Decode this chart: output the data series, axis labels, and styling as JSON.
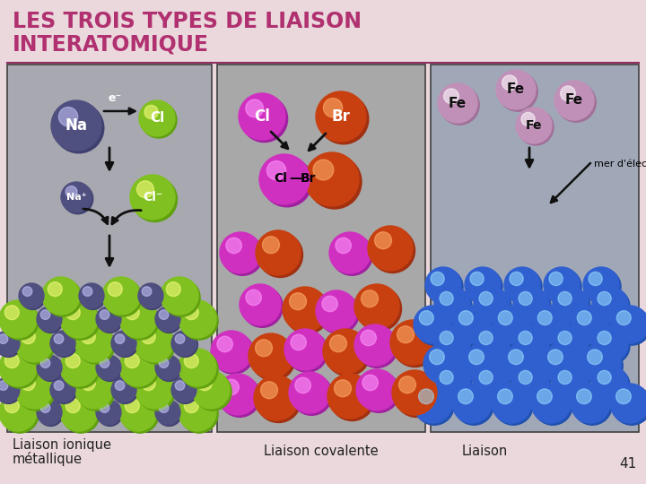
{
  "title_line1": "LES TROIS TYPES DE LIAISON",
  "title_line2": "INTERATOMIQUE",
  "title_color": "#b03070",
  "bg_color": "#ead8dc",
  "divider_color": "#903060",
  "panel_bg": "#a8a8b0",
  "panel2_bg": "#a8a8a8",
  "panel3_bg": "#a0a8b8",
  "section1_label": "Liaison ionique\nmétallique",
  "section2_label": "Liaison covalente",
  "section3_label": "Liaison",
  "page_num": "41",
  "label_color": "#202020",
  "na_color": "#505080",
  "na_dark": "#404070",
  "cl_color": "#80c020",
  "cl_dark": "#60a010",
  "na_plus_color": "#505080",
  "cl_minus_color": "#80c020",
  "cl_cov_color": "#d030c0",
  "cl_cov_dark": "#a020a0",
  "br_color": "#c84010",
  "br_dark": "#a03010",
  "fe_color": "#c090b8",
  "fe_dark": "#a07098",
  "blue_color": "#3060d0",
  "blue_dark": "#2050b0",
  "arrow_color": "#101010",
  "panel_border": "#404040",
  "white": "#ffffff",
  "black": "#000000"
}
